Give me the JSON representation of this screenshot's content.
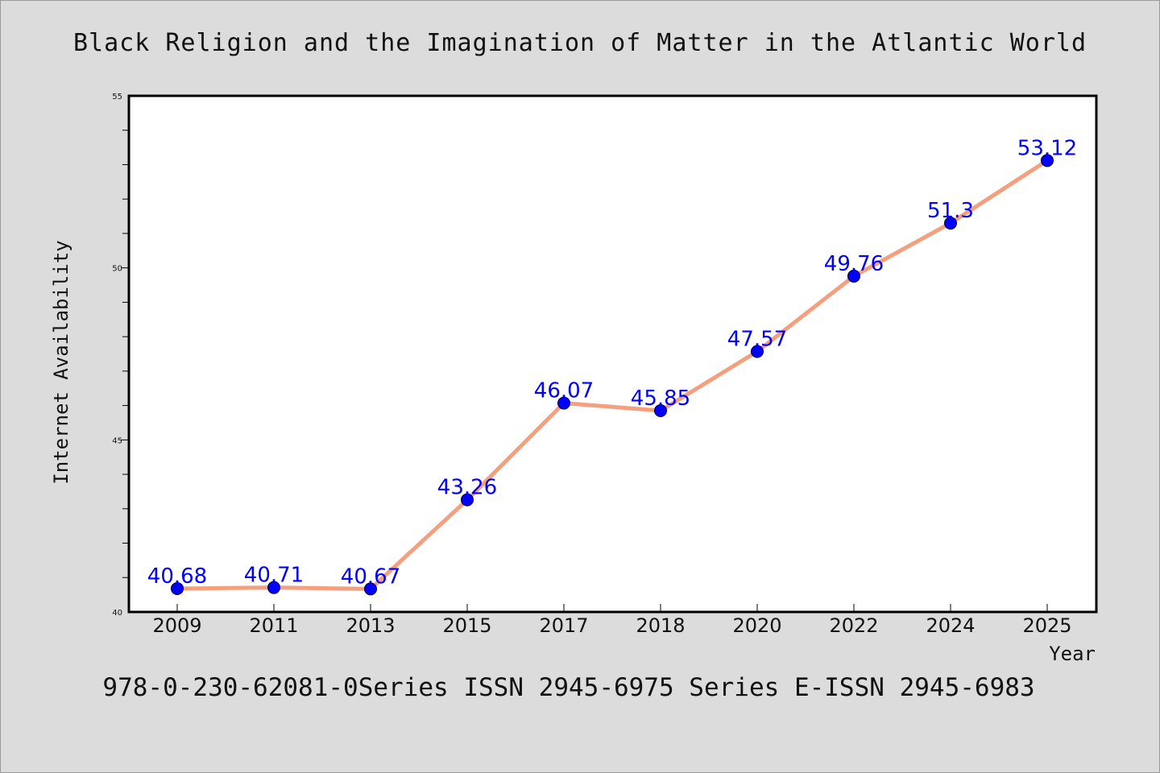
{
  "chart_data": {
    "type": "line",
    "title": "Black Religion and the Imagination of Matter in the Atlantic World",
    "xlabel": "Year",
    "ylabel": "Internet Availability",
    "categories": [
      "2009",
      "2011",
      "2013",
      "2015",
      "2017",
      "2018",
      "2020",
      "2022",
      "2024",
      "2025"
    ],
    "series": [
      {
        "values": [
          40.68,
          40.71,
          40.67,
          43.26,
          46.07,
          45.85,
          47.57,
          49.76,
          51.3,
          53.12
        ],
        "data_labels": [
          "40.68",
          "40.71",
          "40.67",
          "43.26",
          "46.07",
          "45.85",
          "47.57",
          "49.76",
          "51.3",
          "53.12"
        ]
      }
    ],
    "ylim": [
      40,
      55
    ],
    "yticks": [
      "40",
      "45",
      "50",
      "55"
    ],
    "grid": false,
    "colors": {
      "line": "#f4a07e",
      "marker": "#0000ff",
      "label": "#0000ff",
      "background": "#dcdcdc",
      "plot_background": "#ffffff"
    }
  },
  "footer": "978-0-230-62081-0Series ISSN 2945-6975 Series E-ISSN 2945-6983"
}
